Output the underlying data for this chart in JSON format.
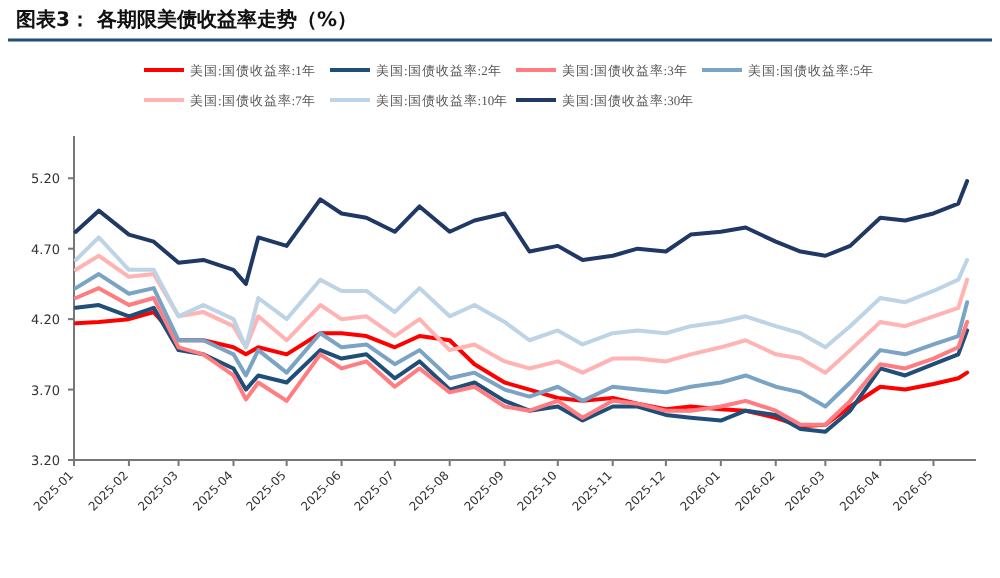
{
  "chart_data": {
    "type": "line",
    "title": "图表3：  各期限美债收益率走势（%）",
    "legend": "top",
    "grid": false,
    "marker": "none",
    "line_style": "solid",
    "x": [
      "2025-01-02",
      "2025-01-15",
      "2025-02-01",
      "2025-02-15",
      "2025-03-01",
      "2025-03-15",
      "2025-04-01",
      "2025-04-08",
      "2025-04-15",
      "2025-05-01",
      "2025-05-20",
      "2025-06-01",
      "2025-06-15",
      "2025-07-01",
      "2025-07-15",
      "2025-08-01",
      "2025-08-15",
      "2025-09-01",
      "2025-09-15",
      "2025-10-01",
      "2025-10-15",
      "2025-11-01",
      "2025-11-15",
      "2025-12-01",
      "2025-12-15",
      "2026-01-01",
      "2026-01-15",
      "2026-02-01",
      "2026-02-15",
      "2026-03-01",
      "2026-03-15",
      "2026-04-01",
      "2026-04-15",
      "2026-05-01",
      "2026-05-15",
      "2026-05-20"
    ],
    "xlim": [
      "2025-01-01",
      "2026-05-25"
    ],
    "xticks": [
      "2025-01",
      "2025-02",
      "2025-03",
      "2025-04",
      "2025-05",
      "2025-06",
      "2025-07",
      "2025-08",
      "2025-09",
      "2025-10",
      "2025-11",
      "2025-12",
      "2026-01",
      "2026-02",
      "2026-03",
      "2026-04",
      "2026-05"
    ],
    "ylim": [
      3.2,
      5.5
    ],
    "yticks": [
      {
        "value": 3.2,
        "label": "3.20"
      },
      {
        "value": 3.7,
        "label": "3.70"
      },
      {
        "value": 4.2,
        "label": "4.20"
      },
      {
        "value": 4.7,
        "label": "4.70"
      },
      {
        "value": 5.2,
        "label": "5.20"
      }
    ],
    "series": [
      {
        "name": "美国:国债收益率:1年",
        "color": "#ff0000",
        "values": [
          4.17,
          4.18,
          4.2,
          4.25,
          4.05,
          4.05,
          4.0,
          3.95,
          4.0,
          3.95,
          4.1,
          4.1,
          4.08,
          4.0,
          4.08,
          4.05,
          3.88,
          3.75,
          3.7,
          3.64,
          3.62,
          3.64,
          3.6,
          3.56,
          3.58,
          3.56,
          3.55,
          3.5,
          3.44,
          3.45,
          3.58,
          3.72,
          3.7,
          3.74,
          3.78,
          3.82
        ]
      },
      {
        "name": "美国:国债收益率:2年",
        "color": "#1f4e79",
        "values": [
          4.28,
          4.3,
          4.22,
          4.28,
          3.98,
          3.95,
          3.85,
          3.7,
          3.8,
          3.75,
          3.98,
          3.92,
          3.95,
          3.78,
          3.9,
          3.7,
          3.75,
          3.62,
          3.55,
          3.58,
          3.48,
          3.58,
          3.58,
          3.52,
          3.5,
          3.48,
          3.55,
          3.52,
          3.42,
          3.4,
          3.55,
          3.85,
          3.8,
          3.88,
          3.95,
          4.12
        ]
      },
      {
        "name": "美国:国债收益率:3年",
        "color": "#ff7c80",
        "values": [
          4.35,
          4.42,
          4.3,
          4.35,
          4.0,
          3.95,
          3.8,
          3.63,
          3.75,
          3.62,
          3.95,
          3.85,
          3.9,
          3.72,
          3.85,
          3.68,
          3.72,
          3.58,
          3.55,
          3.62,
          3.5,
          3.62,
          3.6,
          3.55,
          3.55,
          3.58,
          3.62,
          3.55,
          3.45,
          3.45,
          3.62,
          3.88,
          3.85,
          3.92,
          4.0,
          4.18
        ]
      },
      {
        "name": "美国:国债收益率:5年",
        "color": "#7aa3c4",
        "values": [
          4.42,
          4.52,
          4.38,
          4.42,
          4.05,
          4.05,
          3.95,
          3.8,
          3.98,
          3.82,
          4.1,
          4.0,
          4.02,
          3.88,
          3.98,
          3.78,
          3.82,
          3.7,
          3.65,
          3.72,
          3.62,
          3.72,
          3.7,
          3.68,
          3.72,
          3.75,
          3.8,
          3.72,
          3.68,
          3.58,
          3.75,
          3.98,
          3.95,
          4.02,
          4.08,
          4.32
        ]
      },
      {
        "name": "美国:国债收益率:7年",
        "color": "#ffb3b3",
        "values": [
          4.55,
          4.65,
          4.5,
          4.52,
          4.22,
          4.25,
          4.15,
          4.0,
          4.22,
          4.05,
          4.3,
          4.2,
          4.22,
          4.08,
          4.2,
          3.98,
          4.02,
          3.9,
          3.85,
          3.9,
          3.82,
          3.92,
          3.92,
          3.9,
          3.95,
          4.0,
          4.05,
          3.95,
          3.92,
          3.82,
          3.98,
          4.18,
          4.15,
          4.22,
          4.28,
          4.48
        ]
      },
      {
        "name": "美国:国债收益率:10年",
        "color": "#bdd3e6",
        "values": [
          4.62,
          4.78,
          4.55,
          4.55,
          4.22,
          4.3,
          4.2,
          4.0,
          4.35,
          4.2,
          4.48,
          4.4,
          4.4,
          4.25,
          4.42,
          4.22,
          4.3,
          4.18,
          4.05,
          4.12,
          4.02,
          4.1,
          4.12,
          4.1,
          4.15,
          4.18,
          4.22,
          4.15,
          4.1,
          4.0,
          4.15,
          4.35,
          4.32,
          4.4,
          4.48,
          4.62
        ]
      },
      {
        "name": "美国:国债收益率:30年",
        "color": "#203864",
        "values": [
          4.82,
          4.97,
          4.8,
          4.75,
          4.6,
          4.62,
          4.55,
          4.45,
          4.78,
          4.72,
          5.05,
          4.95,
          4.92,
          4.82,
          5.0,
          4.82,
          4.9,
          4.95,
          4.68,
          4.72,
          4.62,
          4.65,
          4.7,
          4.68,
          4.8,
          4.82,
          4.85,
          4.75,
          4.68,
          4.65,
          4.72,
          4.92,
          4.9,
          4.95,
          5.02,
          5.18
        ]
      }
    ]
  }
}
